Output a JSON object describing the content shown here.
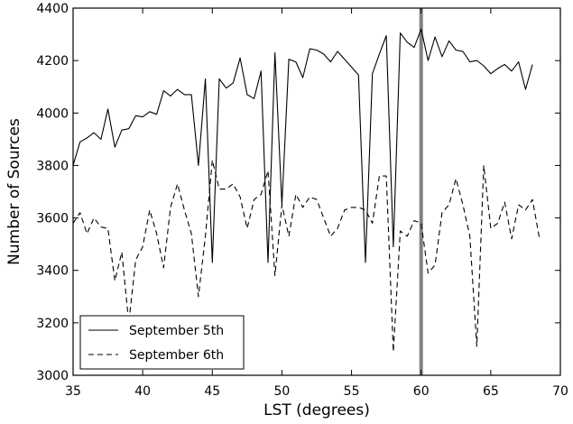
{
  "chart_data": {
    "type": "line",
    "title": "",
    "xlabel": "LST (degrees)",
    "ylabel": "Number of Sources",
    "xlim": [
      35,
      70
    ],
    "ylim": [
      3000,
      4400
    ],
    "xticks": [
      "35",
      "40",
      "45",
      "50",
      "55",
      "60",
      "65",
      "70"
    ],
    "yticks": [
      "3000",
      "3200",
      "3400",
      "3600",
      "3800",
      "4000",
      "4200",
      "4400"
    ],
    "legend_position": "lower-left",
    "grid": false,
    "vertical_marker": {
      "x": 60,
      "color": "#808080"
    },
    "series": [
      {
        "name": "September 5th",
        "style": "solid",
        "color": "#000000",
        "x": [
          35.0,
          35.5,
          36.0,
          36.5,
          37.0,
          37.5,
          38.0,
          38.5,
          39.0,
          39.5,
          40.0,
          40.5,
          41.0,
          41.5,
          42.0,
          42.5,
          43.0,
          43.5,
          44.0,
          44.5,
          45.0,
          45.5,
          46.0,
          46.5,
          47.0,
          47.5,
          48.0,
          48.5,
          49.0,
          49.5,
          50.0,
          50.5,
          51.0,
          51.5,
          52.0,
          52.5,
          53.0,
          53.5,
          54.0,
          54.5,
          55.0,
          55.5,
          56.0,
          56.5,
          57.0,
          57.5,
          58.0,
          58.5,
          59.0,
          59.5,
          60.0,
          60.5,
          61.0,
          61.5,
          62.0,
          62.5,
          63.0,
          63.5,
          64.0,
          64.5,
          65.0,
          65.5,
          66.0,
          66.5,
          67.0,
          67.5,
          68.0
        ],
        "values": [
          3800,
          3890,
          3905,
          3925,
          3900,
          4015,
          3870,
          3935,
          3940,
          3990,
          3985,
          4005,
          3995,
          4085,
          4065,
          4090,
          4070,
          4070,
          3800,
          4130,
          3430,
          4130,
          4095,
          4115,
          4210,
          4070,
          4055,
          4160,
          3430,
          4230,
          3650,
          4205,
          4195,
          4135,
          4245,
          4240,
          4225,
          4195,
          4235,
          4205,
          4175,
          4145,
          3430,
          4150,
          4225,
          4295,
          3490,
          4305,
          4270,
          4250,
          4320,
          4200,
          4290,
          4215,
          4275,
          4240,
          4235,
          4195,
          4200,
          4180,
          4150,
          4170,
          4185,
          4160,
          4195,
          4090,
          4185
        ]
      },
      {
        "name": "September 6th",
        "style": "dashed",
        "color": "#000000",
        "x": [
          35.0,
          35.5,
          36.0,
          36.5,
          37.0,
          37.5,
          38.0,
          38.5,
          39.0,
          39.5,
          40.0,
          40.5,
          41.0,
          41.5,
          42.0,
          42.5,
          43.0,
          43.5,
          44.0,
          44.5,
          45.0,
          45.5,
          46.0,
          46.5,
          47.0,
          47.5,
          48.0,
          48.5,
          49.0,
          49.5,
          50.0,
          50.5,
          51.0,
          51.5,
          52.0,
          52.5,
          53.0,
          53.5,
          54.0,
          54.5,
          55.0,
          55.5,
          56.0,
          56.5,
          57.0,
          57.5,
          58.0,
          58.5,
          59.0,
          59.5,
          60.0,
          60.5,
          61.0,
          61.5,
          62.0,
          62.5,
          63.0,
          63.5,
          64.0,
          64.5,
          65.0,
          65.5,
          66.0,
          66.5,
          67.0,
          67.5,
          68.0,
          68.5
        ],
        "values": [
          3580,
          3620,
          3540,
          3600,
          3565,
          3560,
          3360,
          3470,
          3200,
          3440,
          3490,
          3630,
          3540,
          3410,
          3640,
          3730,
          3630,
          3540,
          3300,
          3530,
          3820,
          3710,
          3710,
          3730,
          3680,
          3560,
          3670,
          3690,
          3780,
          3380,
          3650,
          3530,
          3690,
          3640,
          3680,
          3670,
          3600,
          3530,
          3560,
          3630,
          3640,
          3640,
          3630,
          3580,
          3760,
          3760,
          3090,
          3550,
          3530,
          3590,
          3580,
          3390,
          3420,
          3620,
          3650,
          3750,
          3650,
          3530,
          3110,
          3800,
          3560,
          3580,
          3660,
          3520,
          3650,
          3630,
          3670,
          3520
        ]
      }
    ]
  }
}
